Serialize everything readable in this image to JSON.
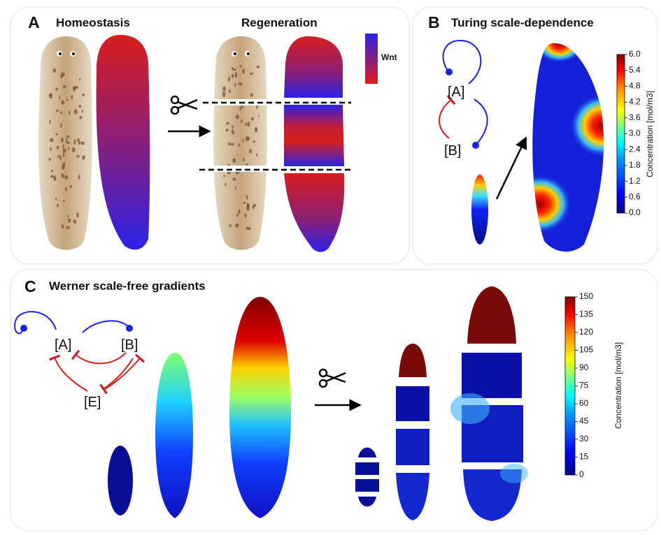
{
  "panel_a": {
    "label": "A",
    "title_left": "Homeostasis",
    "title_right": "Regeneration",
    "legend_label": "Wnt"
  },
  "panel_b": {
    "label": "B",
    "title": "Turing scale-dependence",
    "nodes": [
      "[A]",
      "[B]"
    ],
    "colorbar": {
      "label": "Concentration [mol/m3]",
      "ticks": [
        "6.0",
        "5.4",
        "4.8",
        "4.2",
        "3.6",
        "3.0",
        "2.4",
        "1.8",
        "1.2",
        "0.6",
        "0.0"
      ]
    }
  },
  "panel_c": {
    "label": "C",
    "title": "Werner scale-free gradients",
    "nodes": [
      "[A]",
      "[B]",
      "[E]"
    ],
    "colorbar": {
      "label": "Concentration [mol/m3]",
      "ticks": [
        "150",
        "135",
        "120",
        "105",
        "90",
        "75",
        "60",
        "45",
        "30",
        "15",
        "0"
      ]
    }
  }
}
